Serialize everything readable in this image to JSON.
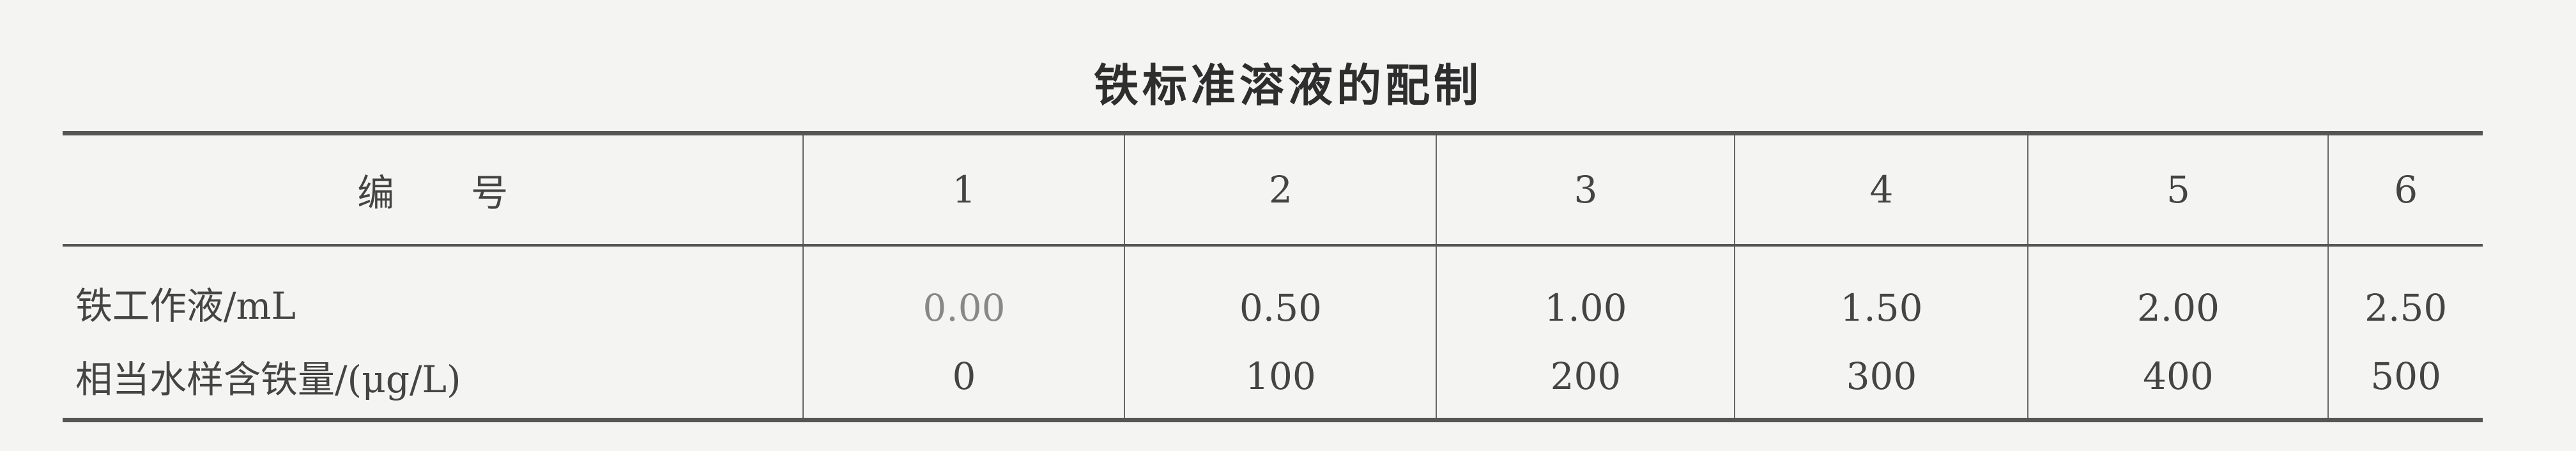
{
  "title": "铁标准溶液的配制",
  "table": {
    "header": [
      "编号",
      "1",
      "2",
      "3",
      "4",
      "5",
      "6"
    ],
    "rows": [
      {
        "label": "铁工作液/mL",
        "values": [
          "0.00",
          "0.50",
          "1.00",
          "1.50",
          "2.00",
          "2.50"
        ]
      },
      {
        "label": "相当水样含铁量/(μg/L)",
        "values": [
          "0",
          "100",
          "200",
          "300",
          "400",
          "500"
        ]
      }
    ]
  }
}
